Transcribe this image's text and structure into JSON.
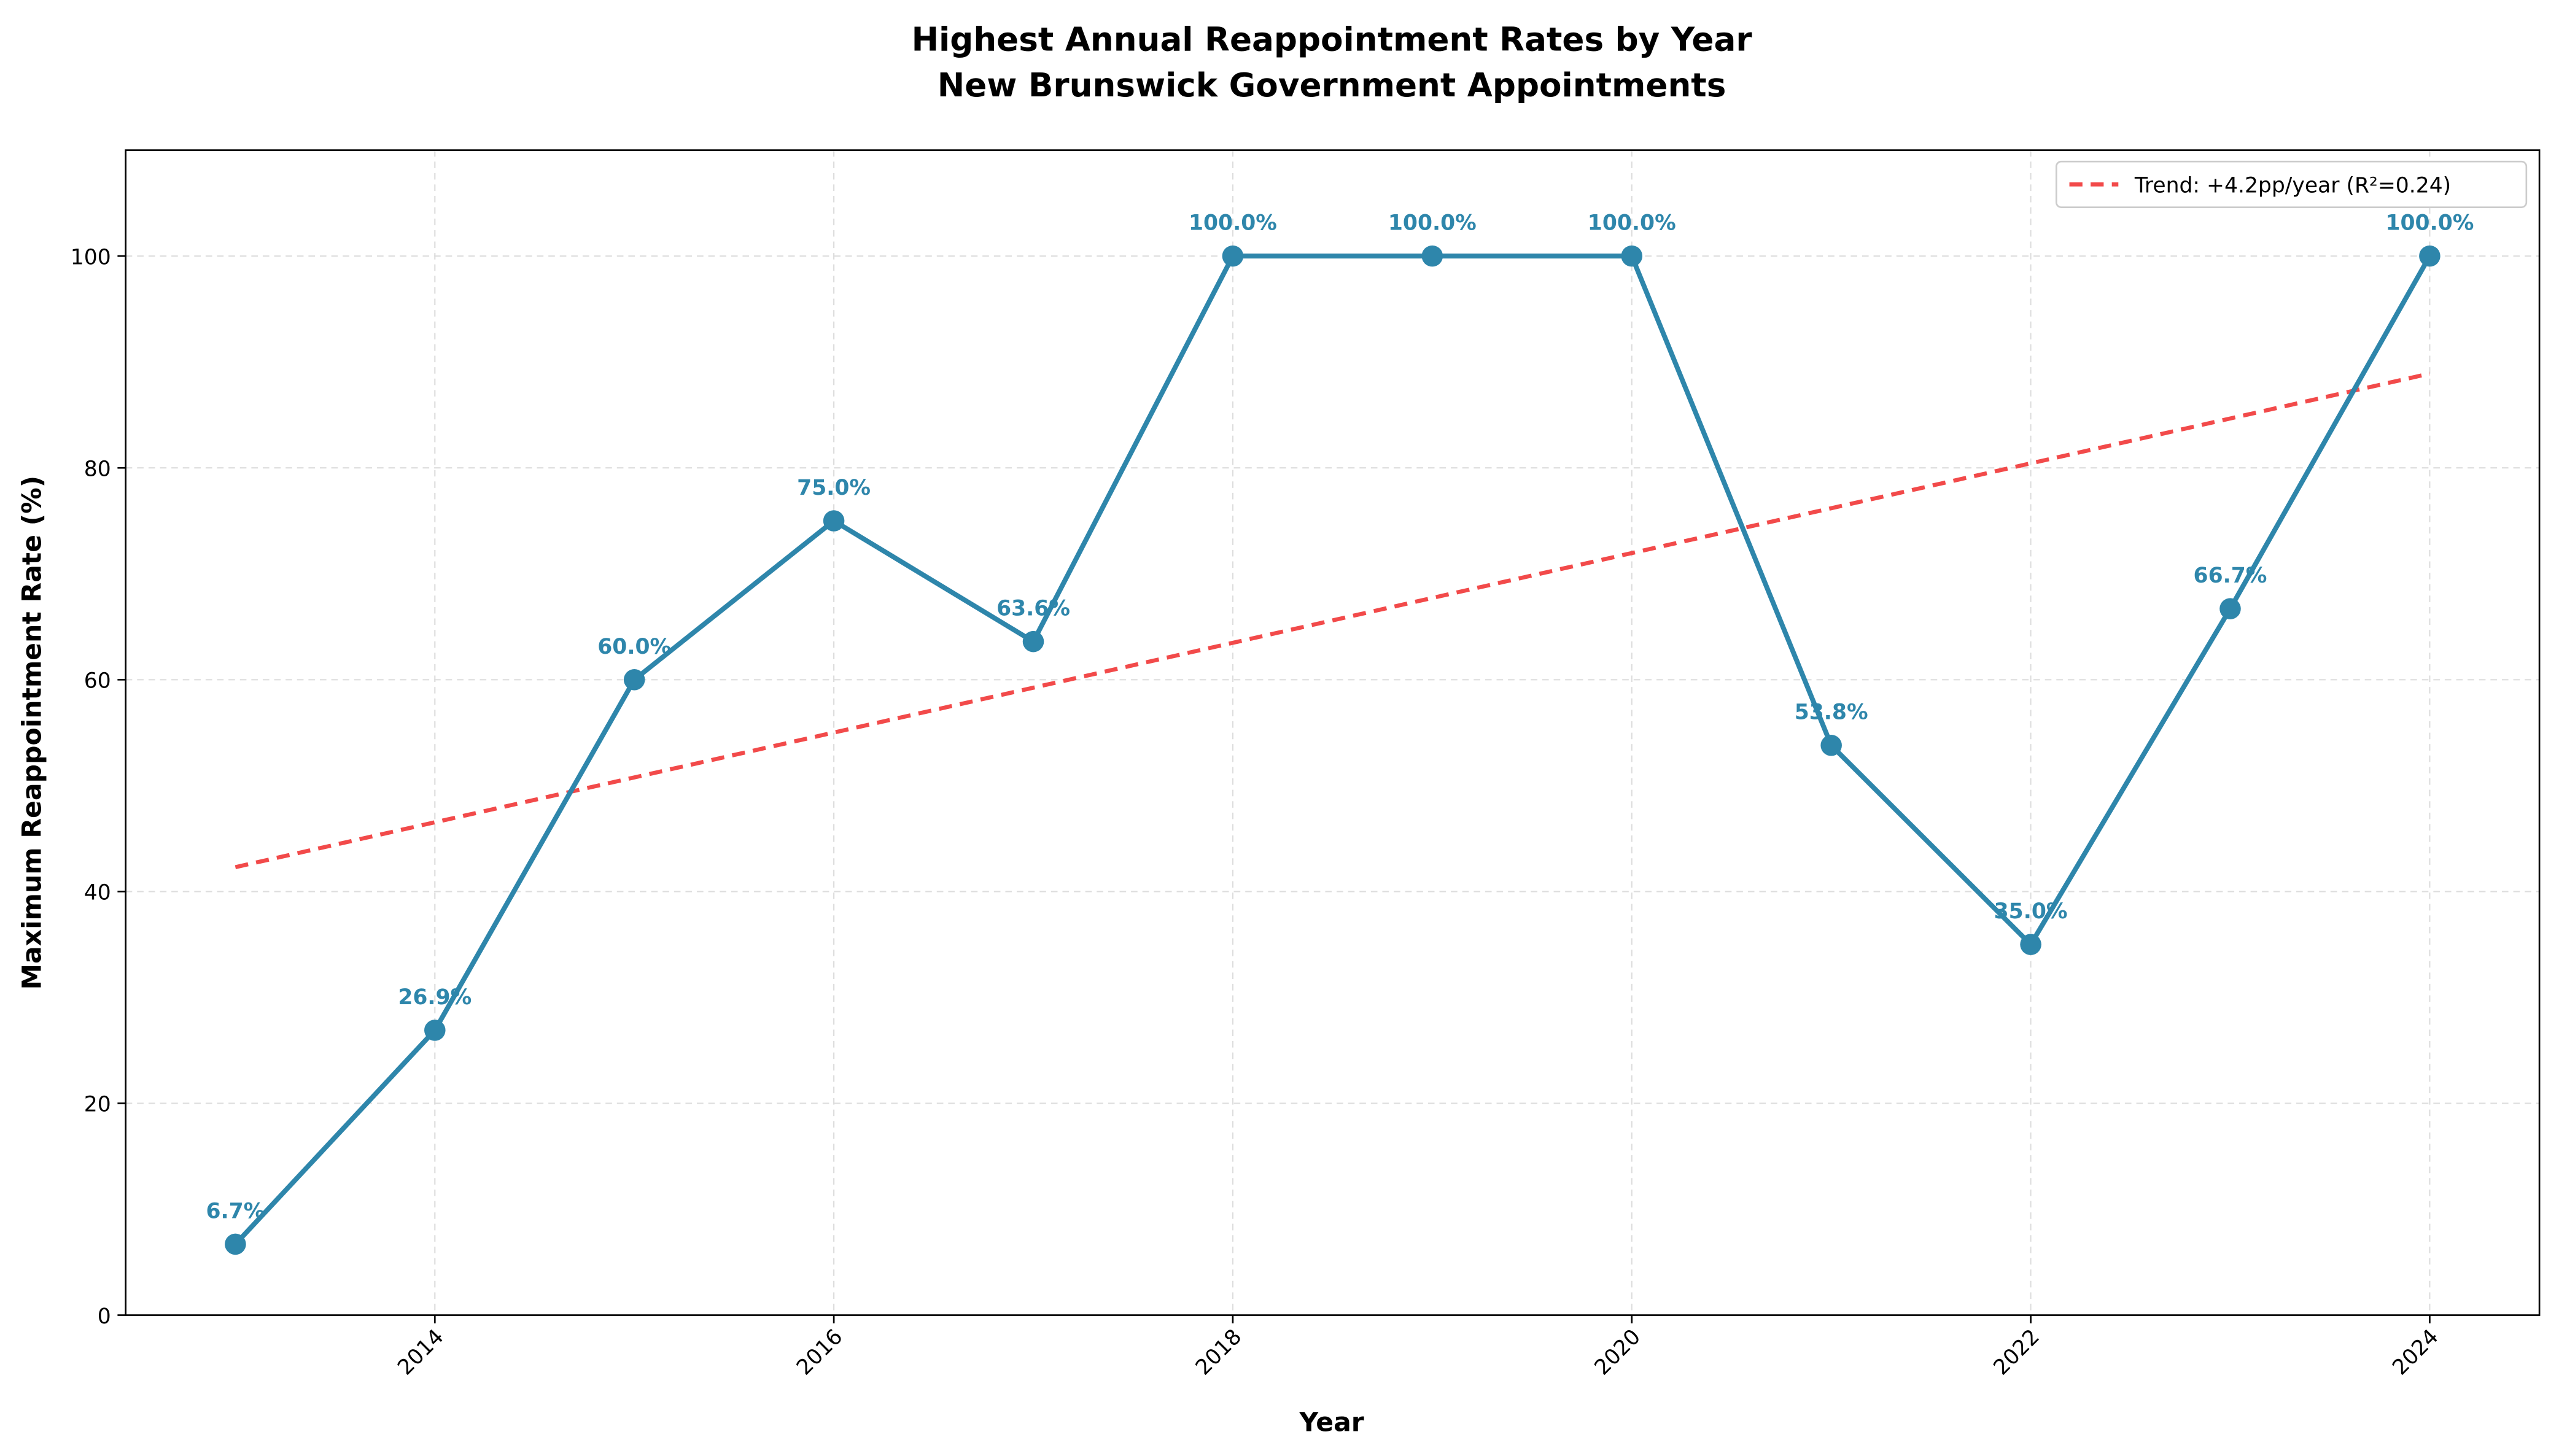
{
  "chart_data": {
    "type": "line",
    "title": "Highest Annual Reappointment Rates by Year",
    "subtitle": "New Brunswick Government Appointments",
    "x_label": "Year",
    "y_label": "Maximum Reappointment Rate (%)",
    "x": [
      2013,
      2014,
      2015,
      2016,
      2017,
      2018,
      2019,
      2020,
      2021,
      2022,
      2023,
      2024
    ],
    "values": [
      6.7,
      26.9,
      60.0,
      75.0,
      63.6,
      100.0,
      100.0,
      100.0,
      53.8,
      35.0,
      66.7,
      100.0
    ],
    "value_labels": [
      "6.7%",
      "26.9%",
      "60.0%",
      "75.0%",
      "63.6%",
      "100.0%",
      "100.0%",
      "100.0%",
      "53.8%",
      "35.0%",
      "66.7%",
      "100.0%"
    ],
    "color": "#2e86ab",
    "trend": {
      "name": "Trend: +4.2pp/year (R²=0.24)",
      "color": "#f24a4a",
      "x": [
        2013,
        2024
      ],
      "values": [
        42.3,
        88.9
      ]
    },
    "xlim": [
      2012.45,
      2024.55
    ],
    "xticks": [
      2014,
      2016,
      2018,
      2020,
      2022,
      2024
    ],
    "ylim": [
      0,
      110
    ],
    "yticks": [
      0,
      20,
      40,
      60,
      80,
      100
    ],
    "grid": true,
    "legend": "upper right"
  }
}
